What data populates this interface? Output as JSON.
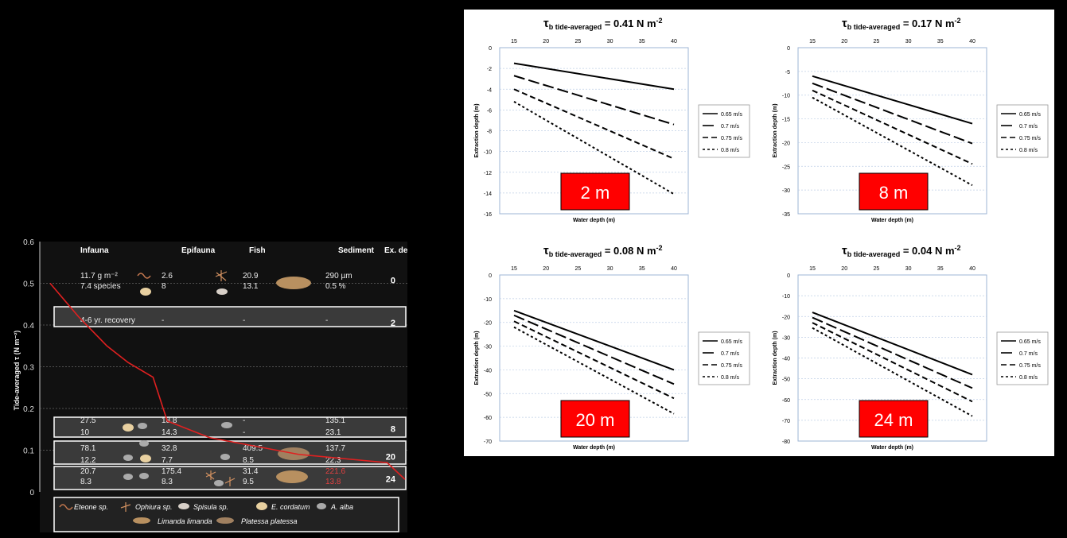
{
  "left": {
    "ylabel": "Tide-averaged τ (N m⁻²)",
    "yticks": [
      "0.6",
      "0.5",
      "0.4",
      "0.3",
      "0.2",
      "0.1",
      "0"
    ],
    "headers": [
      "Infauna",
      "Epifauna",
      "Fish",
      "Sediment",
      "Ex. depth"
    ],
    "rows": [
      {
        "depth": "0",
        "infauna": [
          "11.7 g m⁻²",
          "7.4 species"
        ],
        "epifauna": [
          "2.6",
          "8"
        ],
        "fish": [
          "20.9",
          "13.1"
        ],
        "sediment": [
          "290 µm",
          "0.5 %"
        ],
        "boxed": false,
        "red_sediment": false
      },
      {
        "depth": "2",
        "infauna": [
          "4-6 yr. recovery",
          ""
        ],
        "epifauna": [
          "-",
          ""
        ],
        "fish": [
          "-",
          ""
        ],
        "sediment": [
          "-",
          ""
        ],
        "boxed": true,
        "red_sediment": false
      },
      {
        "depth": "8",
        "infauna": [
          "27.5",
          "10"
        ],
        "epifauna": [
          "18.8",
          "14.3"
        ],
        "fish": [
          "-",
          "-"
        ],
        "sediment": [
          "135.1",
          "23.1"
        ],
        "boxed": true,
        "red_sediment": false
      },
      {
        "depth": "20",
        "infauna": [
          "78.1",
          "12.2"
        ],
        "epifauna": [
          "32.8",
          "7.7"
        ],
        "fish": [
          "409.5",
          "8.5"
        ],
        "sediment": [
          "137.7",
          "22.3"
        ],
        "boxed": true,
        "red_sediment": false
      },
      {
        "depth": "24",
        "infauna": [
          "20.7",
          "8.3"
        ],
        "epifauna": [
          "175.4",
          "8.3"
        ],
        "fish": [
          "31.4",
          "9.5"
        ],
        "sediment": [
          "221.6",
          "13.8"
        ],
        "boxed": true,
        "red_sediment": true
      }
    ],
    "legend": [
      "Eteone sp.",
      "Ophiura sp.",
      "Spisula sp.",
      "E. cordatum",
      "A. alba",
      "Limanda limanda",
      "Platessa platessa"
    ],
    "curve": [
      [
        0,
        0.5
      ],
      [
        0.08,
        0.42
      ],
      [
        0.16,
        0.35
      ],
      [
        0.22,
        0.31
      ],
      [
        0.29,
        0.275
      ],
      [
        0.33,
        0.17
      ],
      [
        0.45,
        0.13
      ],
      [
        0.7,
        0.09
      ],
      [
        0.95,
        0.07
      ],
      [
        1.0,
        0.03
      ]
    ],
    "colors": {
      "curve": "#e02020",
      "red_text": "#e04040"
    }
  },
  "chart_data": [
    {
      "type": "line",
      "title_prefix": "τ",
      "title_sub": "b tide-averaged",
      "title_value": "= 0.41 N m",
      "title_exp": "-2",
      "xlabel": "Water depth (m)",
      "ylabel": "Extraction depth (m)",
      "x": [
        15,
        40
      ],
      "xticks": [
        "15",
        "20",
        "25",
        "30",
        "35",
        "40"
      ],
      "ylim": [
        0,
        -16
      ],
      "yticks": [
        "0",
        "-2",
        "-4",
        "-6",
        "-8",
        "-10",
        "-12",
        "-14",
        "-16"
      ],
      "series": [
        {
          "name": "0.65 m/s",
          "values": [
            -1.5,
            -4.0
          ]
        },
        {
          "name": "0.7 m/s",
          "values": [
            -2.7,
            -7.4
          ]
        },
        {
          "name": "0.75 m/s",
          "values": [
            -4.0,
            -10.7
          ]
        },
        {
          "name": "0.8 m/s",
          "values": [
            -5.2,
            -14.1
          ]
        }
      ],
      "badge": "2 m"
    },
    {
      "type": "line",
      "title_prefix": "τ",
      "title_sub": "b tide-averaged",
      "title_value": "= 0.17 N m",
      "title_exp": "-2",
      "xlabel": "Water depth (m)",
      "ylabel": "Extraction depth (m)",
      "x": [
        15,
        40
      ],
      "xticks": [
        "15",
        "20",
        "25",
        "30",
        "35",
        "40"
      ],
      "ylim": [
        0,
        -35
      ],
      "yticks": [
        "0",
        "-5",
        "-10",
        "-15",
        "-20",
        "-25",
        "-30",
        "-35"
      ],
      "series": [
        {
          "name": "0.65 m/s",
          "values": [
            -6,
            -16
          ]
        },
        {
          "name": "0.7 m/s",
          "values": [
            -7.5,
            -20.2
          ]
        },
        {
          "name": "0.75 m/s",
          "values": [
            -9,
            -24.5
          ]
        },
        {
          "name": "0.8 m/s",
          "values": [
            -10.5,
            -29
          ]
        }
      ],
      "badge": "8 m"
    },
    {
      "type": "line",
      "title_prefix": "τ",
      "title_sub": "b tide-averaged",
      "title_value": "= 0.08 N m",
      "title_exp": "-2",
      "xlabel": "Water depth (m)",
      "ylabel": "Extraction depth (m)",
      "x": [
        15,
        40
      ],
      "xticks": [
        "15",
        "20",
        "25",
        "30",
        "35",
        "40"
      ],
      "ylim": [
        0,
        -70
      ],
      "yticks": [
        "0",
        "-10",
        "-20",
        "-30",
        "-40",
        "-50",
        "-60",
        "-70"
      ],
      "series": [
        {
          "name": "0.65 m/s",
          "values": [
            -15,
            -40
          ]
        },
        {
          "name": "0.7 m/s",
          "values": [
            -17,
            -46
          ]
        },
        {
          "name": "0.75 m/s",
          "values": [
            -19.5,
            -52
          ]
        },
        {
          "name": "0.8 m/s",
          "values": [
            -22,
            -58.5
          ]
        }
      ],
      "badge": "20 m"
    },
    {
      "type": "line",
      "title_prefix": "τ",
      "title_sub": "b tide-averaged",
      "title_value": "= 0.04 N m",
      "title_exp": "-2",
      "xlabel": "Water depth (m)",
      "ylabel": "Extraction depth (m)",
      "x": [
        15,
        40
      ],
      "xticks": [
        "15",
        "20",
        "25",
        "30",
        "35",
        "40"
      ],
      "ylim": [
        0,
        -80
      ],
      "yticks": [
        "0",
        "-10",
        "-20",
        "-30",
        "-40",
        "-50",
        "-60",
        "-70",
        "-80"
      ],
      "series": [
        {
          "name": "0.65 m/s",
          "values": [
            -18,
            -48
          ]
        },
        {
          "name": "0.7 m/s",
          "values": [
            -20.5,
            -54.5
          ]
        },
        {
          "name": "0.75 m/s",
          "values": [
            -23,
            -61
          ]
        },
        {
          "name": "0.8 m/s",
          "values": [
            -25.5,
            -68
          ]
        }
      ],
      "badge": "24 m"
    }
  ],
  "colors": {
    "badge_bg": "#ff0000",
    "grid": "#bfcfe6"
  }
}
